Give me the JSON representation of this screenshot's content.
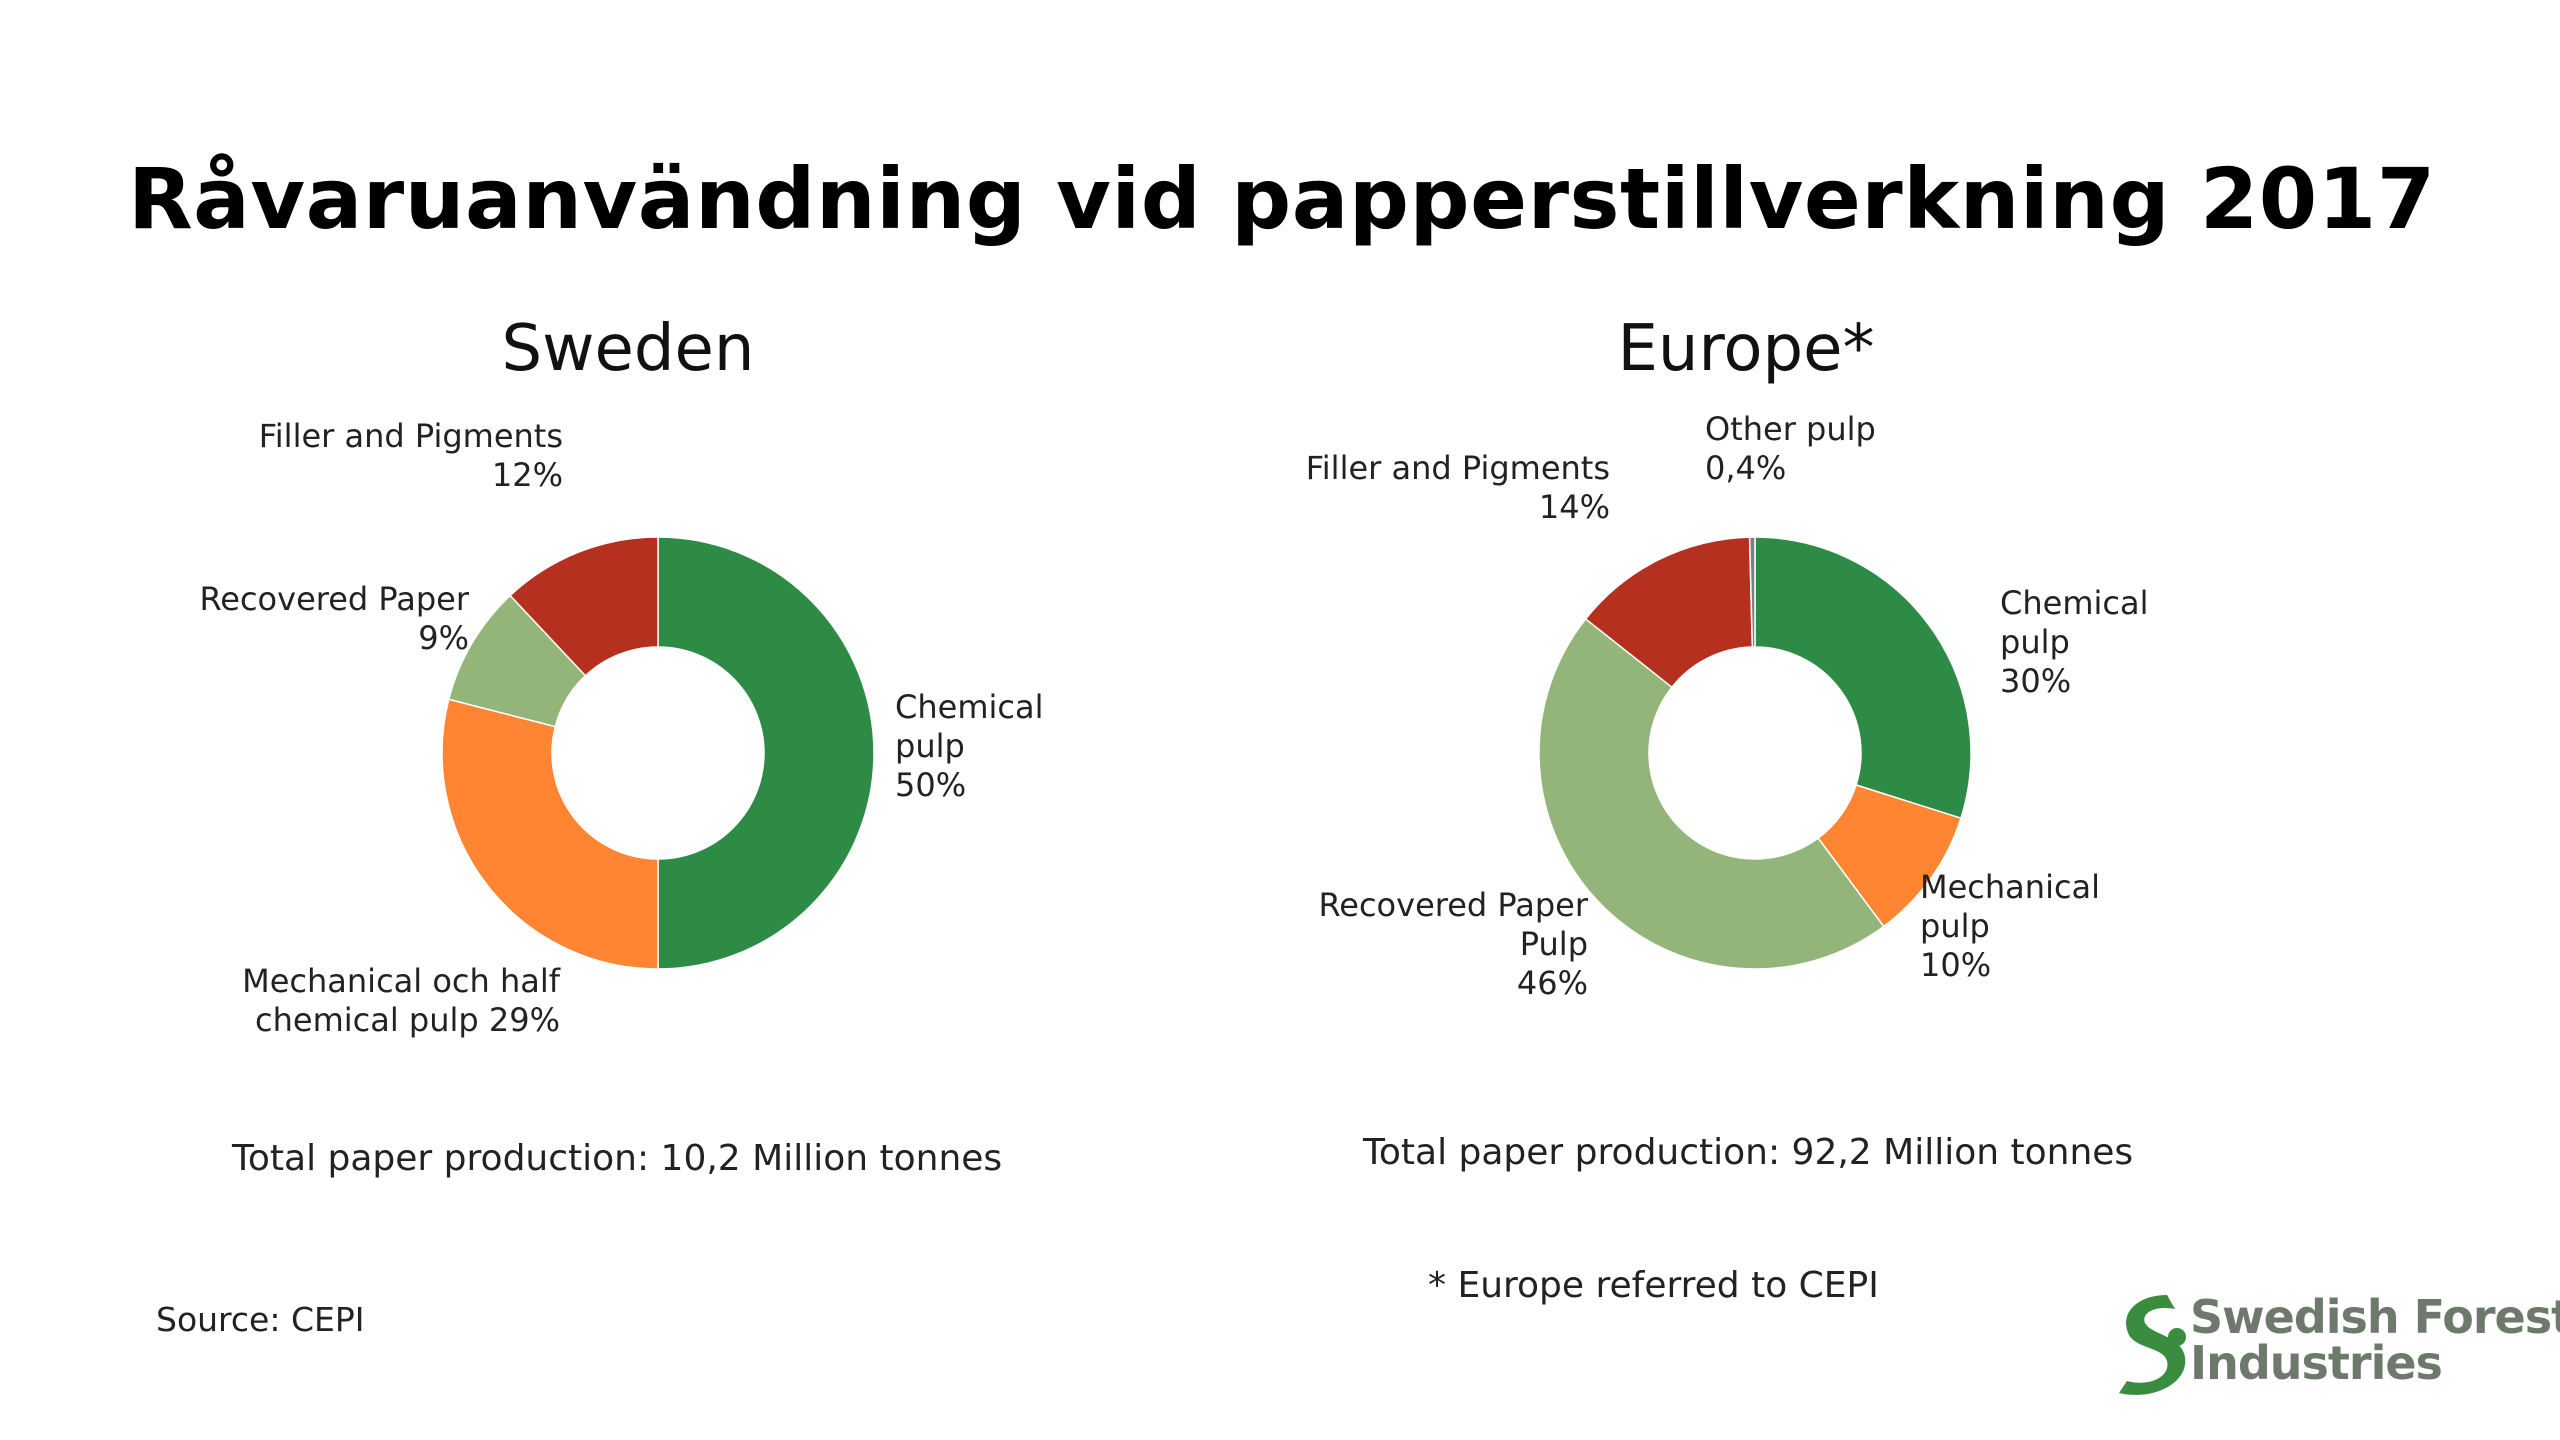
{
  "title": "Råvaruanvändning vid papperstillverkning 2017",
  "source": "Source: CEPI",
  "footnote": "* Europe referred to CEPI",
  "logo": {
    "line1": "Swedish Forest",
    "line2": "Industries",
    "color": "#3a8d3f"
  },
  "colors": {
    "chemical": "#2e8b45",
    "mechanical": "#ff8533",
    "recovered": "#93b579",
    "filler": "#b5301f",
    "other": "#7f7f7f"
  },
  "chart_data": [
    {
      "type": "donut",
      "title": "Sweden",
      "total": "Total paper production: 10,2 Million tonnes",
      "slices": [
        {
          "key": "chemical",
          "value": 50,
          "label_lines": [
            "Chemical",
            "pulp",
            "50%"
          ]
        },
        {
          "key": "mechanical",
          "value": 29,
          "label_lines": [
            "Mechanical och half",
            "chemical pulp 29%"
          ]
        },
        {
          "key": "recovered",
          "value": 9,
          "label_lines": [
            "Recovered Paper",
            "9%"
          ]
        },
        {
          "key": "filler",
          "value": 12,
          "label_lines": [
            "Filler and Pigments",
            "12%"
          ]
        }
      ]
    },
    {
      "type": "donut",
      "title": "Europe*",
      "total": "Total paper production: 92,2 Million tonnes",
      "slices": [
        {
          "key": "chemical",
          "value": 30,
          "label_lines": [
            "Chemical",
            "pulp",
            "30%"
          ]
        },
        {
          "key": "mechanical",
          "value": 10,
          "label_lines": [
            "Mechanical",
            "pulp",
            "10%"
          ]
        },
        {
          "key": "recovered",
          "value": 46,
          "label_lines": [
            "Recovered Paper",
            "Pulp",
            "46%"
          ]
        },
        {
          "key": "filler",
          "value": 14,
          "label_lines": [
            "Filler and Pigments",
            "14%"
          ]
        },
        {
          "key": "other",
          "value": 0.4,
          "label_lines": [
            "Other pulp",
            "0,4%"
          ]
        }
      ]
    }
  ]
}
